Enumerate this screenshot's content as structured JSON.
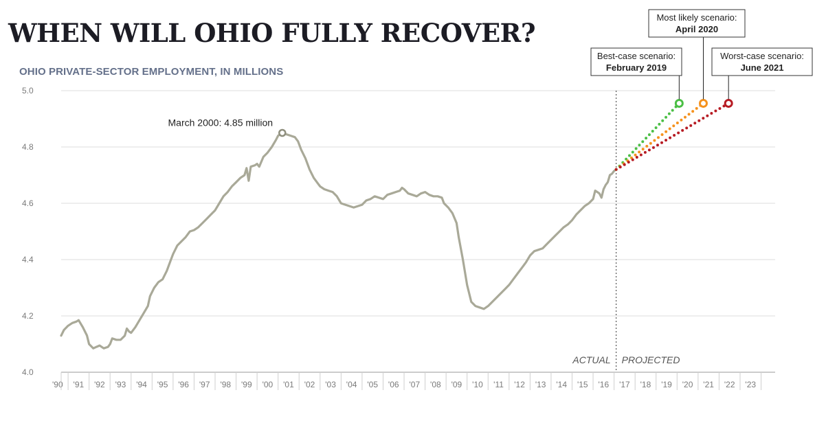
{
  "title": "WHEN WILL OHIO FULLY RECOVER?",
  "chart_data": {
    "type": "line",
    "title": "WHEN WILL OHIO FULLY RECOVER?",
    "subtitle": "OHIO PRIVATE-SECTOR EMPLOYMENT, IN MILLIONS",
    "ylim": [
      4.0,
      5.0
    ],
    "yticks": [
      "4.0",
      "4.2",
      "4.4",
      "4.6",
      "4.8",
      "5.0"
    ],
    "xlim": [
      1989.67,
      2023.67
    ],
    "xticks": [
      "'90",
      "'91",
      "'92",
      "'93",
      "'94",
      "'95",
      "'96",
      "'97",
      "'98",
      "'99",
      "'00",
      "'01",
      "'02",
      "'03",
      "'04",
      "'05",
      "'06",
      "'07",
      "'08",
      "'09",
      "'10",
      "'11",
      "'12",
      "'13",
      "'14",
      "'15",
      "'16",
      "'17",
      "'18",
      "'19",
      "'20",
      "'21",
      "'22",
      "'23"
    ],
    "grid": "horizontal",
    "divider_x": 2016.1,
    "region_labels": {
      "left": "ACTUAL",
      "right": "PROJECTED"
    },
    "series": [
      {
        "type": "actual",
        "color": "#a9a998",
        "points": [
          [
            1989.67,
            4.13
          ],
          [
            1989.8,
            4.15
          ],
          [
            1990.0,
            4.165
          ],
          [
            1990.2,
            4.175
          ],
          [
            1990.4,
            4.18
          ],
          [
            1990.5,
            4.185
          ],
          [
            1990.7,
            4.16
          ],
          [
            1990.9,
            4.13
          ],
          [
            1991.0,
            4.1
          ],
          [
            1991.2,
            4.085
          ],
          [
            1991.35,
            4.09
          ],
          [
            1991.5,
            4.095
          ],
          [
            1991.7,
            4.085
          ],
          [
            1991.9,
            4.09
          ],
          [
            1992.0,
            4.1
          ],
          [
            1992.1,
            4.12
          ],
          [
            1992.3,
            4.115
          ],
          [
            1992.5,
            4.115
          ],
          [
            1992.7,
            4.13
          ],
          [
            1992.8,
            4.155
          ],
          [
            1992.9,
            4.145
          ],
          [
            1993.0,
            4.14
          ],
          [
            1993.2,
            4.16
          ],
          [
            1993.4,
            4.185
          ],
          [
            1993.6,
            4.21
          ],
          [
            1993.8,
            4.235
          ],
          [
            1993.9,
            4.27
          ],
          [
            1994.1,
            4.3
          ],
          [
            1994.3,
            4.32
          ],
          [
            1994.5,
            4.33
          ],
          [
            1994.7,
            4.36
          ],
          [
            1994.9,
            4.4
          ],
          [
            1995.0,
            4.42
          ],
          [
            1995.2,
            4.45
          ],
          [
            1995.4,
            4.465
          ],
          [
            1995.6,
            4.48
          ],
          [
            1995.8,
            4.5
          ],
          [
            1996.0,
            4.505
          ],
          [
            1996.2,
            4.515
          ],
          [
            1996.4,
            4.53
          ],
          [
            1996.6,
            4.545
          ],
          [
            1996.8,
            4.56
          ],
          [
            1997.0,
            4.575
          ],
          [
            1997.2,
            4.6
          ],
          [
            1997.4,
            4.625
          ],
          [
            1997.6,
            4.64
          ],
          [
            1997.8,
            4.66
          ],
          [
            1998.0,
            4.675
          ],
          [
            1998.2,
            4.69
          ],
          [
            1998.4,
            4.7
          ],
          [
            1998.5,
            4.725
          ],
          [
            1998.6,
            4.68
          ],
          [
            1998.7,
            4.73
          ],
          [
            1998.9,
            4.735
          ],
          [
            1999.0,
            4.74
          ],
          [
            1999.1,
            4.73
          ],
          [
            1999.3,
            4.765
          ],
          [
            1999.5,
            4.78
          ],
          [
            1999.7,
            4.8
          ],
          [
            1999.9,
            4.825
          ],
          [
            2000.0,
            4.84
          ],
          [
            2000.2,
            4.85
          ],
          [
            2000.4,
            4.845
          ],
          [
            2000.6,
            4.84
          ],
          [
            2000.8,
            4.835
          ],
          [
            2000.95,
            4.82
          ],
          [
            2001.1,
            4.79
          ],
          [
            2001.3,
            4.76
          ],
          [
            2001.5,
            4.72
          ],
          [
            2001.7,
            4.69
          ],
          [
            2001.9,
            4.67
          ],
          [
            2002.0,
            4.66
          ],
          [
            2002.2,
            4.65
          ],
          [
            2002.4,
            4.645
          ],
          [
            2002.6,
            4.64
          ],
          [
            2002.8,
            4.625
          ],
          [
            2003.0,
            4.6
          ],
          [
            2003.2,
            4.595
          ],
          [
            2003.4,
            4.59
          ],
          [
            2003.6,
            4.585
          ],
          [
            2003.8,
            4.59
          ],
          [
            2004.0,
            4.595
          ],
          [
            2004.2,
            4.61
          ],
          [
            2004.4,
            4.615
          ],
          [
            2004.6,
            4.625
          ],
          [
            2004.8,
            4.62
          ],
          [
            2005.0,
            4.615
          ],
          [
            2005.2,
            4.63
          ],
          [
            2005.4,
            4.635
          ],
          [
            2005.6,
            4.64
          ],
          [
            2005.8,
            4.645
          ],
          [
            2005.9,
            4.655
          ],
          [
            2006.0,
            4.65
          ],
          [
            2006.2,
            4.635
          ],
          [
            2006.4,
            4.63
          ],
          [
            2006.6,
            4.625
          ],
          [
            2006.8,
            4.635
          ],
          [
            2007.0,
            4.64
          ],
          [
            2007.2,
            4.63
          ],
          [
            2007.4,
            4.625
          ],
          [
            2007.6,
            4.625
          ],
          [
            2007.8,
            4.62
          ],
          [
            2007.9,
            4.6
          ],
          [
            2008.1,
            4.585
          ],
          [
            2008.3,
            4.565
          ],
          [
            2008.5,
            4.53
          ],
          [
            2008.6,
            4.48
          ],
          [
            2008.8,
            4.4
          ],
          [
            2009.0,
            4.31
          ],
          [
            2009.2,
            4.25
          ],
          [
            2009.4,
            4.235
          ],
          [
            2009.6,
            4.23
          ],
          [
            2009.8,
            4.225
          ],
          [
            2010.0,
            4.235
          ],
          [
            2010.2,
            4.25
          ],
          [
            2010.4,
            4.265
          ],
          [
            2010.6,
            4.28
          ],
          [
            2010.8,
            4.295
          ],
          [
            2011.0,
            4.31
          ],
          [
            2011.2,
            4.33
          ],
          [
            2011.4,
            4.35
          ],
          [
            2011.6,
            4.37
          ],
          [
            2011.8,
            4.39
          ],
          [
            2012.0,
            4.415
          ],
          [
            2012.2,
            4.43
          ],
          [
            2012.4,
            4.435
          ],
          [
            2012.6,
            4.44
          ],
          [
            2012.8,
            4.455
          ],
          [
            2013.0,
            4.47
          ],
          [
            2013.2,
            4.485
          ],
          [
            2013.4,
            4.5
          ],
          [
            2013.6,
            4.515
          ],
          [
            2013.8,
            4.525
          ],
          [
            2014.0,
            4.54
          ],
          [
            2014.2,
            4.56
          ],
          [
            2014.4,
            4.575
          ],
          [
            2014.6,
            4.59
          ],
          [
            2014.8,
            4.6
          ],
          [
            2015.0,
            4.615
          ],
          [
            2015.1,
            4.645
          ],
          [
            2015.2,
            4.64
          ],
          [
            2015.3,
            4.635
          ],
          [
            2015.4,
            4.62
          ],
          [
            2015.5,
            4.65
          ],
          [
            2015.6,
            4.665
          ],
          [
            2015.7,
            4.675
          ],
          [
            2015.8,
            4.7
          ],
          [
            2015.9,
            4.705
          ],
          [
            2016.0,
            4.715
          ],
          [
            2016.1,
            4.72
          ]
        ]
      },
      {
        "name": "Best-case scenario",
        "type": "projection",
        "color": "#4bbf45",
        "start": [
          2016.1,
          4.72
        ],
        "end": [
          2019.1,
          4.955
        ],
        "label_line1": "Best-case scenario:",
        "label_line2": "February 2019"
      },
      {
        "name": "Most likely scenario",
        "type": "projection",
        "color": "#f5921e",
        "start": [
          2016.1,
          4.72
        ],
        "end": [
          2020.25,
          4.955
        ],
        "label_line1": "Most likely scenario:",
        "label_line2": "April 2020"
      },
      {
        "name": "Worst-case scenario",
        "type": "projection",
        "color": "#b71c24",
        "start": [
          2016.1,
          4.72
        ],
        "end": [
          2021.45,
          4.955
        ],
        "label_line1": "Worst-case scenario:",
        "label_line2": "June 2021"
      }
    ],
    "annotations": [
      {
        "text": "March 2000: 4.85 million",
        "x": 2000.2,
        "y": 4.85,
        "marker_color": "#8f8f7e"
      }
    ]
  }
}
